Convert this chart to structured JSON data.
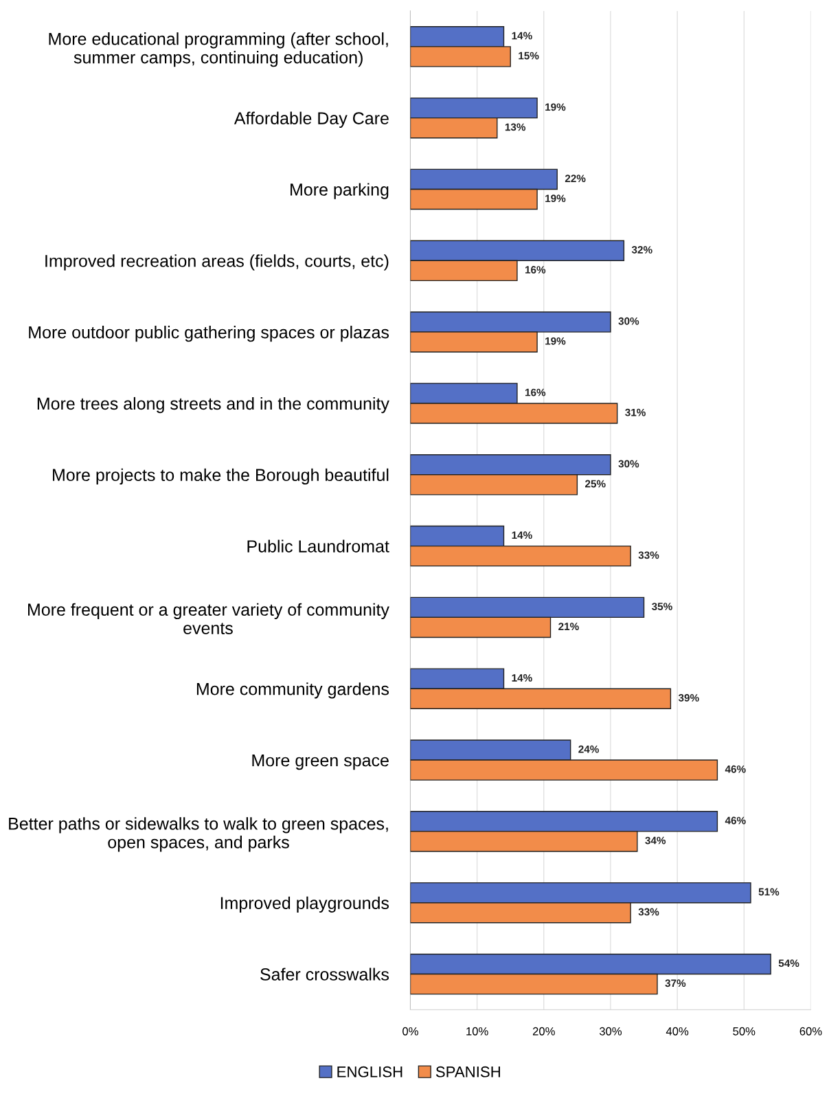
{
  "chart_data": {
    "type": "bar",
    "orientation": "horizontal",
    "categories": [
      "More educational programming (after school,\nsummer camps, continuing education)",
      "Affordable Day Care",
      "More parking",
      "Improved recreation areas (fields, courts, etc)",
      "More outdoor public gathering spaces or plazas",
      "More trees along streets and in the community",
      "More projects to make the Borough beautiful",
      "Public Laundromat",
      "More frequent or a greater variety of community\nevents",
      "More community gardens",
      "More green space",
      "Better paths or sidewalks to walk to green spaces,\nopen spaces, and parks",
      "Improved playgrounds",
      "Safer crosswalks"
    ],
    "series": [
      {
        "name": "ENGLISH",
        "color": "#5470c6",
        "values": [
          14,
          19,
          22,
          32,
          30,
          16,
          30,
          14,
          35,
          14,
          24,
          46,
          51,
          54
        ],
        "value_labels": [
          "14%",
          "19%",
          "22%",
          "32%",
          "30%",
          "16%",
          "30%",
          "14%",
          "35%",
          "14%",
          "24%",
          "46%",
          "51%",
          "54%"
        ]
      },
      {
        "name": "SPANISH",
        "color": "#f28c4a",
        "values": [
          15,
          13,
          19,
          16,
          19,
          31,
          25,
          33,
          21,
          39,
          46,
          34,
          33,
          37
        ],
        "value_labels": [
          "15%",
          "13%",
          "19%",
          "16%",
          "19%",
          "31%",
          "25%",
          "33%",
          "21%",
          "39%",
          "46%",
          "34%",
          "33%",
          "37%"
        ]
      }
    ],
    "xlim": [
      0,
      60
    ],
    "xticks": [
      {
        "value": 0,
        "label": "0%"
      },
      {
        "value": 10,
        "label": "10%"
      },
      {
        "value": 20,
        "label": "20%"
      },
      {
        "value": 30,
        "label": "30%"
      },
      {
        "value": 40,
        "label": "40%"
      },
      {
        "value": 50,
        "label": "50%"
      },
      {
        "value": 60,
        "label": "60%"
      }
    ],
    "grid": "x",
    "legend": "bottom"
  }
}
